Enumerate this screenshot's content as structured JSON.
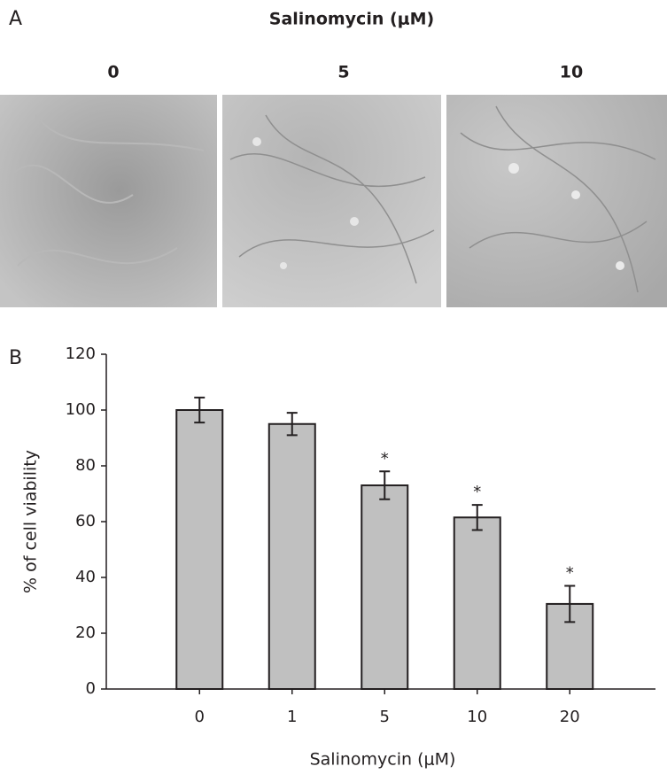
{
  "panel_a": {
    "label": "A",
    "title": "Salinomycin (μM)",
    "image_labels": [
      "0",
      "5",
      "10"
    ]
  },
  "chart_data": {
    "type": "bar",
    "panel_label": "B",
    "xlabel": "Salinomycin (μM)",
    "ylabel": "% of cell viability",
    "categories": [
      "0",
      "1",
      "5",
      "10",
      "20"
    ],
    "values": [
      100,
      95,
      73,
      61.5,
      30.5
    ],
    "errors": [
      4.5,
      4,
      5,
      4.5,
      6.5
    ],
    "significance": [
      null,
      null,
      "*",
      "*",
      "*"
    ],
    "color": "#c0c0c0",
    "ylim": [
      0,
      120
    ],
    "yticks": [
      0,
      20,
      40,
      60,
      80,
      100,
      120
    ]
  }
}
